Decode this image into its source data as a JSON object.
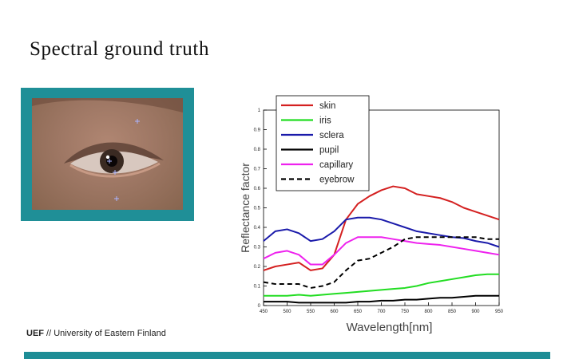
{
  "slide": {
    "title": "Spectral ground truth",
    "footer_org": "UEF",
    "footer_rest": " // University of Eastern Finland",
    "accent_color": "#1e8d96"
  },
  "photo": {
    "description_icon": "eye-photo",
    "marker_color": "#aab4ff"
  },
  "chart_data": {
    "type": "line",
    "xlabel": "Wavelength[nm]",
    "ylabel": "Reflectance factor",
    "xlim": [
      450,
      950
    ],
    "ylim": [
      0,
      1
    ],
    "xticks": [
      450,
      500,
      550,
      600,
      650,
      700,
      750,
      800,
      850,
      900,
      950
    ],
    "yticks": [
      0,
      0.1,
      0.2,
      0.3,
      0.4,
      0.5,
      0.6,
      0.7,
      0.8,
      0.9,
      1
    ],
    "ytick_labels": [
      "0",
      "0.1",
      "0.2",
      "0.3",
      "0.4",
      "0.5",
      "0.6",
      "0.7",
      "0.8",
      "0.9",
      "1"
    ],
    "grid": false,
    "legend_position": "top-left",
    "x": [
      450,
      475,
      500,
      525,
      550,
      575,
      600,
      625,
      650,
      675,
      700,
      725,
      750,
      775,
      800,
      825,
      850,
      875,
      900,
      925,
      950
    ],
    "series": [
      {
        "name": "skin",
        "color": "#d42020",
        "dash": false,
        "values": [
          0.18,
          0.2,
          0.21,
          0.22,
          0.18,
          0.19,
          0.26,
          0.44,
          0.52,
          0.56,
          0.59,
          0.61,
          0.6,
          0.57,
          0.56,
          0.55,
          0.53,
          0.5,
          0.48,
          0.46,
          0.44
        ]
      },
      {
        "name": "iris",
        "color": "#22dd22",
        "dash": false,
        "values": [
          0.05,
          0.05,
          0.05,
          0.055,
          0.05,
          0.055,
          0.06,
          0.065,
          0.07,
          0.075,
          0.08,
          0.085,
          0.09,
          0.1,
          0.115,
          0.125,
          0.135,
          0.145,
          0.155,
          0.16,
          0.16
        ]
      },
      {
        "name": "sclera",
        "color": "#1a1aaa",
        "dash": false,
        "values": [
          0.33,
          0.38,
          0.39,
          0.37,
          0.33,
          0.34,
          0.38,
          0.44,
          0.45,
          0.45,
          0.44,
          0.42,
          0.4,
          0.38,
          0.37,
          0.36,
          0.35,
          0.345,
          0.33,
          0.32,
          0.3
        ]
      },
      {
        "name": "pupil",
        "color": "#000000",
        "dash": false,
        "values": [
          0.02,
          0.02,
          0.02,
          0.015,
          0.015,
          0.015,
          0.015,
          0.015,
          0.02,
          0.02,
          0.025,
          0.025,
          0.03,
          0.03,
          0.035,
          0.04,
          0.04,
          0.045,
          0.05,
          0.05,
          0.05
        ]
      },
      {
        "name": "capillary",
        "color": "#ee22ee",
        "dash": false,
        "values": [
          0.24,
          0.27,
          0.28,
          0.26,
          0.21,
          0.21,
          0.26,
          0.32,
          0.35,
          0.35,
          0.35,
          0.34,
          0.33,
          0.32,
          0.315,
          0.31,
          0.3,
          0.29,
          0.28,
          0.27,
          0.26
        ]
      },
      {
        "name": "eyebrow",
        "color": "#000000",
        "dash": true,
        "values": [
          0.12,
          0.11,
          0.11,
          0.11,
          0.09,
          0.1,
          0.12,
          0.18,
          0.23,
          0.24,
          0.27,
          0.3,
          0.34,
          0.35,
          0.35,
          0.35,
          0.35,
          0.35,
          0.35,
          0.34,
          0.34
        ]
      }
    ]
  }
}
